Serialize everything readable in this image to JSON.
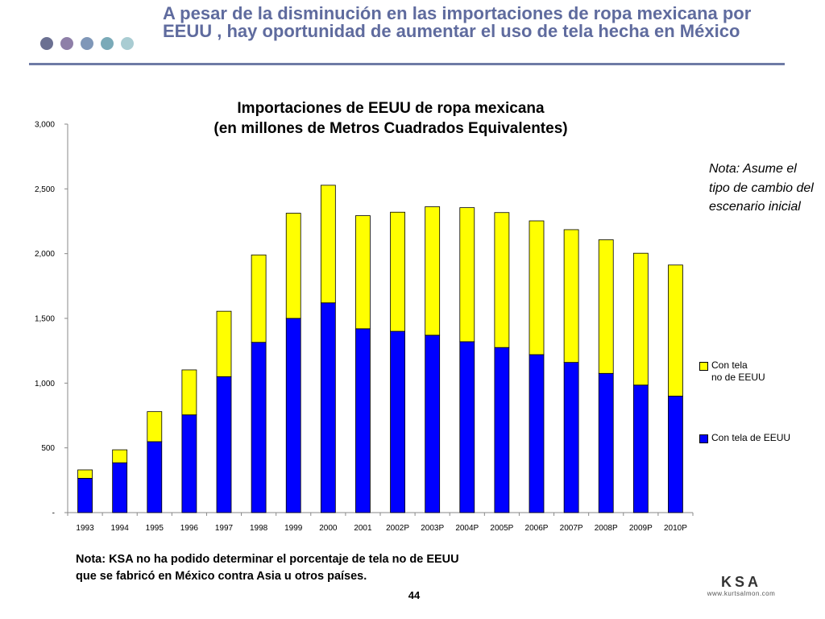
{
  "header": {
    "title": "A pesar de la disminución en las importaciones de ropa mexicana por EEUU , hay oportunidad de aumentar el uso de tela hecha en México",
    "dot_colors": [
      "#6b7092",
      "#8e7fa8",
      "#7f97b8",
      "#7aaab8",
      "#a9ccd2"
    ]
  },
  "chart_data": {
    "type": "bar",
    "stacked": true,
    "title": "Importaciones de EEUU de ropa mexicana",
    "subtitle": "(en millones de Metros Cuadrados Equivalentes)",
    "categories": [
      "1993",
      "1994",
      "1995",
      "1996",
      "1997",
      "1998",
      "1999",
      "2000",
      "2001",
      "2002P",
      "2003P",
      "2004P",
      "2005P",
      "2006P",
      "2007P",
      "2008P",
      "2009P",
      "2010P"
    ],
    "series": [
      {
        "name": "Con tela de EEUU",
        "color": "#0000ff",
        "values": [
          265,
          385,
          548,
          755,
          1050,
          1315,
          1500,
          1620,
          1420,
          1400,
          1370,
          1320,
          1275,
          1220,
          1160,
          1075,
          985,
          900
        ]
      },
      {
        "name": "Con tela no de EEUU",
        "color": "#ffff00",
        "values": [
          65,
          100,
          232,
          347,
          505,
          675,
          812,
          908,
          873,
          920,
          992,
          1035,
          1042,
          1033,
          1025,
          1032,
          1018,
          1012
        ]
      }
    ],
    "y_ticks": [
      "-",
      "500",
      "1,000",
      "1,500",
      "2,000",
      "2,500",
      "3,000"
    ],
    "ylim": [
      0,
      3000
    ],
    "grid": false,
    "legend_position": "right"
  },
  "legend": [
    {
      "line1": "Con tela",
      "line2": "no de EEUU",
      "color": "#ffff00"
    },
    {
      "line1": "Con tela de EEUU",
      "line2": "",
      "color": "#0000ff"
    }
  ],
  "side_note": "Nota: Asume el tipo de cambio del escenario inicial",
  "bottom_note": {
    "line1": "Nota:  KSA no ha podido determinar el porcentaje de tela no de EEUU",
    "line2": "que se fabricó en México contra Asia u otros países."
  },
  "page_number": "44",
  "logo": {
    "text": "KSA",
    "url": "www.kurtsalmon.com"
  }
}
